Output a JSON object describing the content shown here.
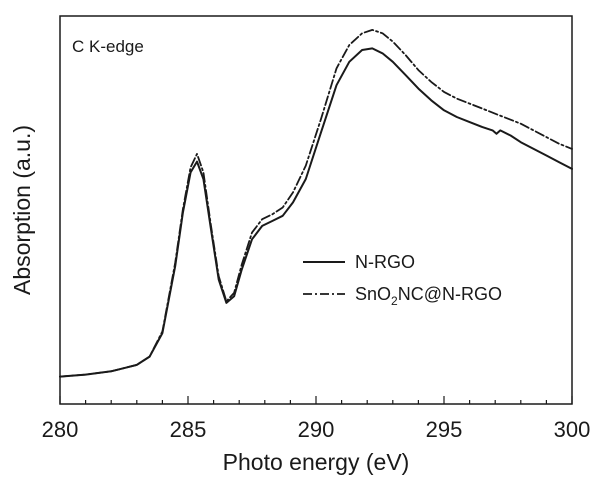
{
  "chart_data": {
    "type": "line",
    "title": "",
    "annotation": "C K-edge",
    "xlabel": "Photo energy (eV)",
    "ylabel": "Absorption (a.u.)",
    "xlim": [
      280,
      300
    ],
    "ylim": [
      0,
      1
    ],
    "xticks": [
      280,
      285,
      290,
      295,
      300
    ],
    "grid": false,
    "legend_position": "center-right",
    "legend": {
      "entry1": "N-RGO",
      "entry2_prefix": "SnO",
      "entry2_sub": "2",
      "entry2_suffix": "NC@N-RGO"
    },
    "series": [
      {
        "name": "N-RGO",
        "style": "solid",
        "x": [
          280,
          281,
          282,
          283,
          283.5,
          284,
          284.5,
          284.8,
          285.1,
          285.35,
          285.6,
          285.9,
          286.2,
          286.5,
          286.8,
          287.1,
          287.5,
          287.9,
          288.3,
          288.7,
          289.1,
          289.6,
          290.2,
          290.8,
          291.3,
          291.8,
          292.2,
          292.6,
          293.0,
          293.5,
          294,
          294.5,
          295,
          295.5,
          296,
          296.5,
          296.9,
          297.05,
          297.2,
          297.6,
          298,
          298.5,
          299,
          299.5,
          300
        ],
        "values": [
          0.01,
          0.016,
          0.026,
          0.045,
          0.07,
          0.14,
          0.34,
          0.5,
          0.62,
          0.652,
          0.6,
          0.45,
          0.3,
          0.23,
          0.25,
          0.33,
          0.42,
          0.46,
          0.475,
          0.49,
          0.53,
          0.6,
          0.74,
          0.88,
          0.95,
          0.985,
          0.99,
          0.975,
          0.95,
          0.91,
          0.87,
          0.835,
          0.805,
          0.785,
          0.77,
          0.755,
          0.745,
          0.735,
          0.745,
          0.73,
          0.71,
          0.69,
          0.67,
          0.65,
          0.63
        ]
      },
      {
        "name": "SnO2NC@N-RGO",
        "style": "dash-dot",
        "x": [
          280,
          281,
          282,
          283,
          283.5,
          284,
          284.5,
          284.8,
          285.1,
          285.35,
          285.6,
          285.9,
          286.2,
          286.5,
          286.8,
          287.1,
          287.5,
          287.9,
          288.3,
          288.7,
          289.1,
          289.6,
          290.2,
          290.8,
          291.3,
          291.8,
          292.2,
          292.6,
          293.0,
          293.5,
          294,
          294.5,
          295,
          295.5,
          296,
          296.5,
          297,
          297.5,
          298,
          298.5,
          299,
          299.5,
          300
        ],
        "values": [
          0.01,
          0.016,
          0.026,
          0.045,
          0.07,
          0.145,
          0.35,
          0.51,
          0.635,
          0.675,
          0.62,
          0.46,
          0.31,
          0.235,
          0.26,
          0.345,
          0.44,
          0.48,
          0.495,
          0.515,
          0.56,
          0.64,
          0.78,
          0.93,
          1.0,
          1.035,
          1.045,
          1.035,
          1.01,
          0.97,
          0.925,
          0.89,
          0.86,
          0.84,
          0.825,
          0.81,
          0.795,
          0.78,
          0.765,
          0.745,
          0.725,
          0.705,
          0.69
        ]
      }
    ]
  }
}
